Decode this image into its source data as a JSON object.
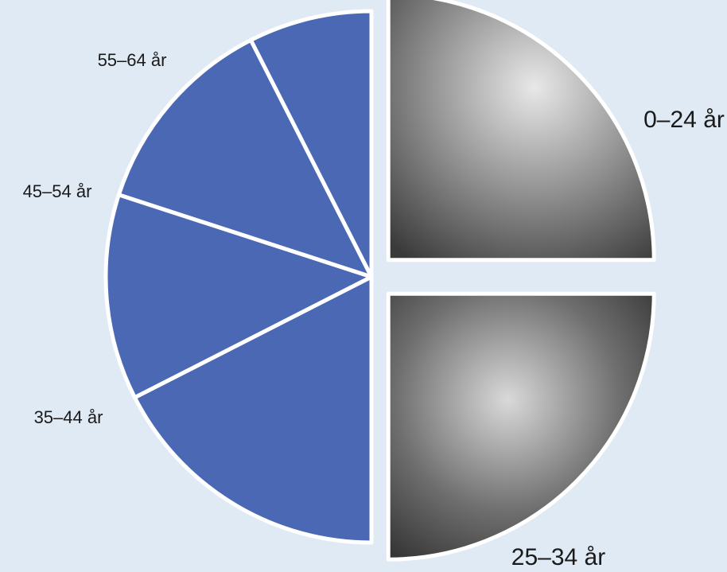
{
  "chart_data": {
    "type": "pie",
    "title": "",
    "exploded_slices": [
      "0–24 år",
      "25–34 år"
    ],
    "slices": [
      {
        "label": "0–24 år",
        "value": 25.0,
        "fill": "photo"
      },
      {
        "label": "25–34 år",
        "value": 25.0,
        "fill": "photo"
      },
      {
        "label": "35–44 år",
        "value": 17.5,
        "fill": "#4a68b3"
      },
      {
        "label": "45–54 år",
        "value": 12.5,
        "fill": "#4a68b3"
      },
      {
        "label": "55–64 år",
        "value": 12.5,
        "fill": "#4a68b3"
      },
      {
        "label": "",
        "value": 7.5,
        "fill": "#4a68b3"
      }
    ]
  },
  "colors": {
    "background": "#dfeaf4",
    "slice_blue": "#4a68b3",
    "separator": "#ffffff"
  }
}
